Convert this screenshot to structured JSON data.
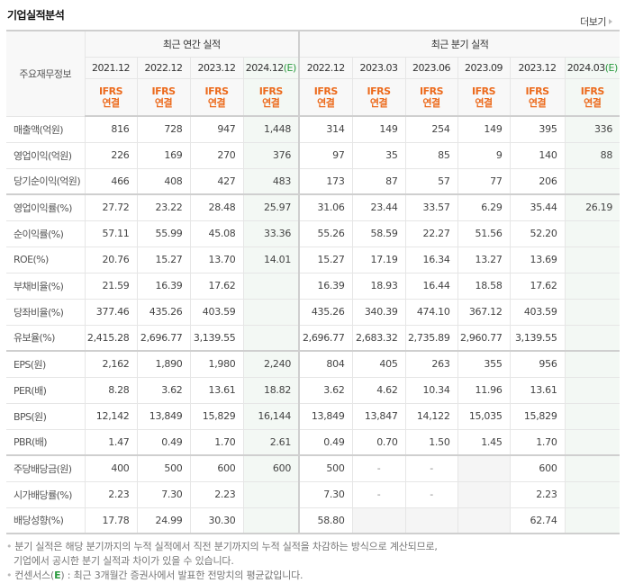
{
  "title": "기업실적분석",
  "more_link": "더보기",
  "table": {
    "row_header": "주요재무정보",
    "groups": [
      {
        "label": "최근 연간 실적"
      },
      {
        "label": "최근 분기 실적"
      }
    ],
    "periods": [
      {
        "label": "2021.12",
        "estimate": ""
      },
      {
        "label": "2022.12",
        "estimate": ""
      },
      {
        "label": "2023.12",
        "estimate": ""
      },
      {
        "label": "2024.12",
        "estimate": "(E)"
      },
      {
        "label": "2022.12",
        "estimate": ""
      },
      {
        "label": "2023.03",
        "estimate": ""
      },
      {
        "label": "2023.06",
        "estimate": ""
      },
      {
        "label": "2023.09",
        "estimate": ""
      },
      {
        "label": "2023.12",
        "estimate": ""
      },
      {
        "label": "2024.03",
        "estimate": "(E)"
      }
    ],
    "basis_line1": "IFRS",
    "basis_line2": "연결",
    "rows": [
      {
        "label": "매출액(억원)",
        "values": [
          "816",
          "728",
          "947",
          "1,448",
          "314",
          "149",
          "254",
          "149",
          "395",
          "336"
        ]
      },
      {
        "label": "영업이익(억원)",
        "values": [
          "226",
          "169",
          "270",
          "376",
          "97",
          "35",
          "85",
          "9",
          "140",
          "88"
        ]
      },
      {
        "label": "당기순이익(억원)",
        "values": [
          "466",
          "408",
          "427",
          "483",
          "173",
          "87",
          "57",
          "77",
          "206",
          ""
        ]
      },
      {
        "label": "영업이익률(%)",
        "values": [
          "27.72",
          "23.22",
          "28.48",
          "25.97",
          "31.06",
          "23.44",
          "33.57",
          "6.29",
          "35.44",
          "26.19"
        ]
      },
      {
        "label": "순이익률(%)",
        "values": [
          "57.11",
          "55.99",
          "45.08",
          "33.36",
          "55.26",
          "58.59",
          "22.27",
          "51.56",
          "52.20",
          ""
        ]
      },
      {
        "label": "ROE(%)",
        "values": [
          "20.76",
          "15.27",
          "13.70",
          "14.01",
          "15.27",
          "17.19",
          "16.34",
          "13.27",
          "13.69",
          ""
        ]
      },
      {
        "label": "부채비율(%)",
        "values": [
          "21.59",
          "16.39",
          "17.62",
          "",
          "16.39",
          "18.93",
          "16.44",
          "18.58",
          "17.62",
          ""
        ]
      },
      {
        "label": "당좌비율(%)",
        "values": [
          "377.46",
          "435.26",
          "403.59",
          "",
          "435.26",
          "340.39",
          "474.10",
          "367.12",
          "403.59",
          ""
        ]
      },
      {
        "label": "유보율(%)",
        "values": [
          "2,415.28",
          "2,696.77",
          "3,139.55",
          "",
          "2,696.77",
          "2,683.32",
          "2,735.89",
          "2,960.77",
          "3,139.55",
          ""
        ]
      },
      {
        "label": "EPS(원)",
        "values": [
          "2,162",
          "1,890",
          "1,980",
          "2,240",
          "804",
          "405",
          "263",
          "355",
          "956",
          ""
        ]
      },
      {
        "label": "PER(배)",
        "values": [
          "8.28",
          "3.62",
          "13.61",
          "18.82",
          "3.62",
          "4.62",
          "10.34",
          "11.96",
          "13.61",
          ""
        ]
      },
      {
        "label": "BPS(원)",
        "values": [
          "12,142",
          "13,849",
          "15,829",
          "16,144",
          "13,849",
          "13,847",
          "14,122",
          "15,035",
          "15,829",
          ""
        ]
      },
      {
        "label": "PBR(배)",
        "values": [
          "1.47",
          "0.49",
          "1.70",
          "2.61",
          "0.49",
          "0.70",
          "1.50",
          "1.45",
          "1.70",
          ""
        ]
      },
      {
        "label": "주당배당금(원)",
        "values": [
          "400",
          "500",
          "600",
          "600",
          "500",
          "-",
          "-",
          "",
          "600",
          ""
        ]
      },
      {
        "label": "시가배당률(%)",
        "values": [
          "2.23",
          "7.30",
          "2.23",
          "",
          "7.30",
          "-",
          "-",
          "",
          "2.23",
          ""
        ]
      },
      {
        "label": "배당성향(%)",
        "values": [
          "17.78",
          "24.99",
          "30.30",
          "",
          "58.80",
          "",
          "",
          "",
          "62.74",
          ""
        ]
      }
    ]
  },
  "notes": {
    "line1": "분기 실적은 해당 분기까지의 누적 실적에서 직전 분기까지의 누적 실적을 차감하는 방식으로 계산되므로,",
    "line2": "기업에서 공시한 분기 실적과 차이가 있을 수 있습니다.",
    "line3_prefix": "컨센서스(",
    "line3_e": "E",
    "line3_suffix": ") : 최근 3개월간 증권사에서 발표한 전망치의 평균값입니다."
  }
}
